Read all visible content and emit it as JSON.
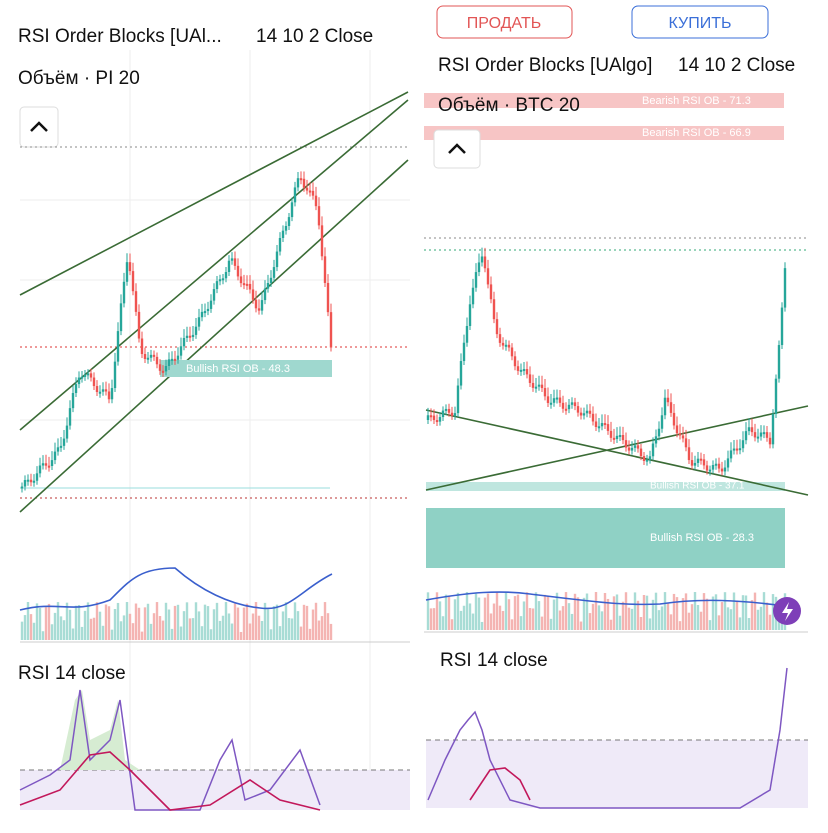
{
  "left": {
    "title": "RSI Order Blocks [UAl...",
    "params": "14 10 2 Close",
    "volume": "Объём · PI 20",
    "ob_label": "Bullish RSI OB - 48.3",
    "rsi_title": "RSI 14 close"
  },
  "right": {
    "sell": "ПРОДАТЬ",
    "buy": "КУПИТЬ",
    "title": "RSI Order Blocks [UAlgo]",
    "params": "14 10 2 Close",
    "volume": "Объём · BTC 20",
    "bear_ob_1": "Bearish RSI OB - 71.3",
    "bear_ob_2": "Bearish RSI OB - 66.9",
    "bull_ob_1": "Bullish RSI OB - 37.1",
    "bull_ob_2": "Bullish RSI OB - 28.3",
    "rsi_title": "RSI 14 close"
  }
}
